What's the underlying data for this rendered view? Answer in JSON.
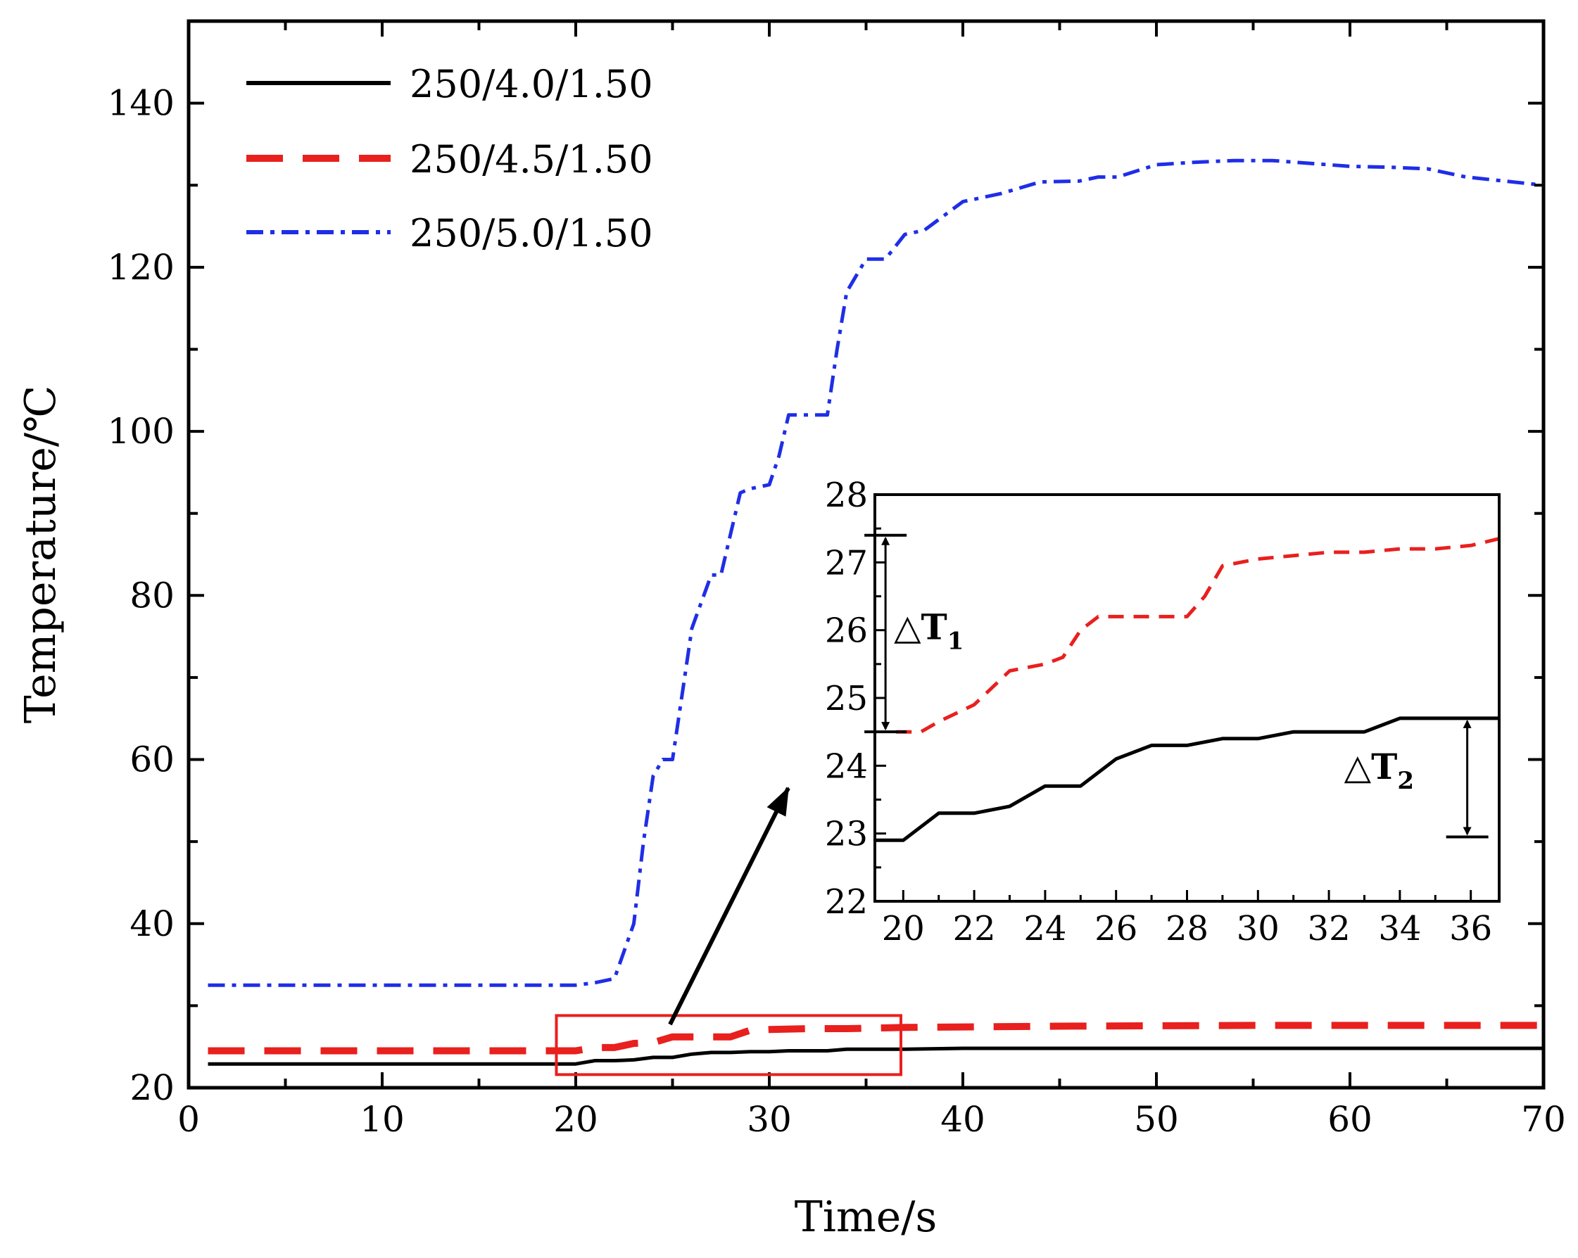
{
  "chart_data": {
    "main": {
      "type": "line",
      "xlabel": "Time/s",
      "ylabel": "Temperature/℃",
      "xlim": [
        0,
        70
      ],
      "ylim": [
        20,
        150
      ],
      "xticks": [
        0,
        10,
        20,
        30,
        40,
        50,
        60,
        70
      ],
      "yticks": [
        20,
        40,
        60,
        80,
        100,
        120,
        140
      ],
      "legend_position": "top-left",
      "series": [
        {
          "name": "250/4.0/1.50",
          "color": "#000000",
          "style": "solid",
          "x": [
            1,
            19,
            20,
            20.5,
            21,
            22,
            23,
            24,
            25,
            26,
            27,
            28,
            29,
            30,
            31,
            33,
            34,
            36,
            37,
            40,
            70
          ],
          "y": [
            22.9,
            22.9,
            22.9,
            23.1,
            23.3,
            23.3,
            23.4,
            23.7,
            23.7,
            24.1,
            24.3,
            24.3,
            24.4,
            24.4,
            24.5,
            24.5,
            24.7,
            24.7,
            24.7,
            24.8,
            24.8
          ]
        },
        {
          "name": "250/4.5/1.50",
          "color": "#e8201e",
          "style": "dashed",
          "x": [
            1,
            20,
            21,
            22,
            23,
            24,
            25,
            26,
            28,
            29,
            30,
            32,
            34,
            37,
            45,
            55,
            70
          ],
          "y": [
            24.5,
            24.5,
            24.9,
            24.9,
            25.4,
            25.5,
            26.2,
            26.2,
            26.2,
            27.0,
            27.1,
            27.2,
            27.2,
            27.35,
            27.5,
            27.6,
            27.6
          ]
        },
        {
          "name": "250/5.0/1.50",
          "color": "#1f2ee6",
          "style": "dash-dot",
          "x": [
            1,
            20,
            21,
            22,
            23,
            23.5,
            24,
            24.5,
            25,
            25.5,
            26,
            27,
            27.5,
            28,
            28.5,
            29,
            30,
            30.5,
            31,
            32,
            33,
            33.5,
            34,
            35,
            36,
            37,
            38,
            40,
            42,
            44,
            46,
            47,
            48,
            50,
            52,
            54,
            56,
            60,
            62,
            64,
            66,
            68,
            70
          ],
          "y": [
            32.5,
            32.5,
            32.8,
            33.3,
            40,
            50,
            58,
            60,
            60,
            68,
            76,
            82.5,
            82.5,
            87.5,
            92.5,
            93,
            93.5,
            97,
            102,
            102,
            102,
            110,
            117,
            121,
            121,
            124,
            124.5,
            128,
            129,
            130.4,
            130.5,
            131,
            131,
            132.5,
            132.8,
            133,
            133,
            132.3,
            132.2,
            132,
            131,
            130.5,
            130
          ]
        }
      ],
      "highlight_box": {
        "x_range": [
          19,
          36.8
        ],
        "y_range": [
          21.6,
          28.8
        ],
        "color": "#e8201e"
      }
    },
    "inset": {
      "type": "line",
      "xlim": [
        19.2,
        36.8
      ],
      "ylim": [
        22,
        28
      ],
      "xticks": [
        20,
        22,
        24,
        26,
        28,
        30,
        32,
        34,
        36
      ],
      "yticks": [
        22,
        23,
        24,
        25,
        26,
        27,
        28
      ],
      "series": [
        {
          "name": "250/4.0/1.50",
          "color": "#000000",
          "style": "solid",
          "x": [
            19.2,
            20,
            21,
            22,
            23,
            24,
            25,
            26,
            27,
            28,
            29,
            30,
            31,
            32,
            33,
            34,
            35,
            36.8
          ],
          "y": [
            22.9,
            22.9,
            23.3,
            23.3,
            23.4,
            23.7,
            23.7,
            24.1,
            24.3,
            24.3,
            24.4,
            24.4,
            24.5,
            24.5,
            24.5,
            24.7,
            24.7,
            24.7
          ]
        },
        {
          "name": "250/4.5/1.50",
          "color": "#e8201e",
          "style": "dashed",
          "x": [
            19.8,
            20.5,
            21,
            22,
            23,
            24,
            24.5,
            25,
            25.5,
            26,
            27,
            28,
            28.5,
            29,
            30,
            31,
            32,
            33,
            34,
            35,
            36,
            36.8
          ],
          "y": [
            24.5,
            24.5,
            24.65,
            24.9,
            25.4,
            25.5,
            25.6,
            26.0,
            26.2,
            26.2,
            26.2,
            26.2,
            26.5,
            26.95,
            27.05,
            27.1,
            27.15,
            27.15,
            27.2,
            27.2,
            27.25,
            27.35
          ]
        }
      ],
      "annotations": [
        {
          "label": "△T",
          "subscript": "1",
          "x": 19.5,
          "y_from": 24.5,
          "y_to": 27.4
        },
        {
          "label": "△T",
          "subscript": "2",
          "x": 35.9,
          "y_from": 22.95,
          "y_to": 24.7
        }
      ]
    }
  }
}
